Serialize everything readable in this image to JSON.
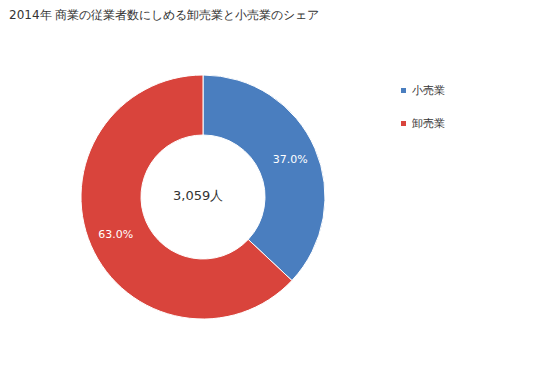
{
  "chart_data": {
    "type": "pie",
    "title": "2014年 商業の従業者数にしめる卸売業と小売業のシェア",
    "categories": [
      "小売業",
      "卸売業"
    ],
    "values": [
      37,
      63
    ],
    "value_labels": [
      "37.0%",
      "63.0%"
    ],
    "colors": [
      "#4a7ebf",
      "#d9443c"
    ],
    "annotation": "3,059人",
    "data_labels": true,
    "legend": "top-right"
  }
}
